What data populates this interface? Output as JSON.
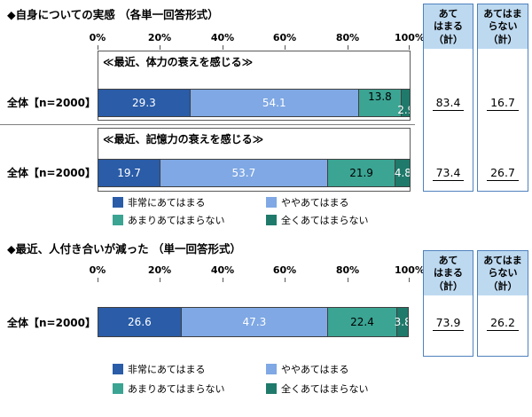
{
  "colors": {
    "segments": [
      "#2a5ca8",
      "#7fa8e4",
      "#3ba493",
      "#1f7a6b"
    ],
    "header_bg": "#bdd9f0",
    "box_border": "#4f81bd",
    "bar_outline": "#404040"
  },
  "legend": {
    "items": [
      {
        "label": "非常にあてはまる"
      },
      {
        "label": "ややあてはまる"
      },
      {
        "label": "あまりあてはまらない"
      },
      {
        "label": "全くあてはまらない"
      }
    ]
  },
  "summary": {
    "agree_header": "あて\nはまる\n（計）",
    "disagree_header": "あてはま\nらない\n（計）"
  },
  "chart_data": [
    {
      "type": "bar",
      "stacked": true,
      "title": "◆自身についての実感 （各単一回答形式）",
      "xlabel": "",
      "xlim": [
        0,
        100
      ],
      "x_ticks": [
        "0%",
        "20%",
        "40%",
        "60%",
        "80%",
        "100%"
      ],
      "categories": [
        "非常にあてはまる",
        "ややあてはまる",
        "あまりあてはまらない",
        "全くあてはまらない"
      ],
      "rows": [
        {
          "row_label": "全体【n=2000】",
          "subtitle": "≪最近、体力の衰えを感じる≫",
          "values": [
            29.3,
            54.1,
            13.8,
            2.9
          ],
          "agree_total": 83.4,
          "disagree_total": 16.7
        },
        {
          "row_label": "全体【n=2000】",
          "subtitle": "≪最近、記憶力の衰えを感じる≫",
          "values": [
            19.7,
            53.7,
            21.9,
            4.8
          ],
          "agree_total": 73.4,
          "disagree_total": 26.7
        }
      ]
    },
    {
      "type": "bar",
      "stacked": true,
      "title": "◆最近、人付き合いが減った （単一回答形式）",
      "xlabel": "",
      "xlim": [
        0,
        100
      ],
      "x_ticks": [
        "0%",
        "20%",
        "40%",
        "60%",
        "80%",
        "100%"
      ],
      "categories": [
        "非常にあてはまる",
        "ややあてはまる",
        "あまりあてはまらない",
        "全くあてはまらない"
      ],
      "rows": [
        {
          "row_label": "全体【n=2000】",
          "values": [
            26.6,
            47.3,
            22.4,
            3.8
          ],
          "agree_total": 73.9,
          "disagree_total": 26.2
        }
      ]
    }
  ]
}
